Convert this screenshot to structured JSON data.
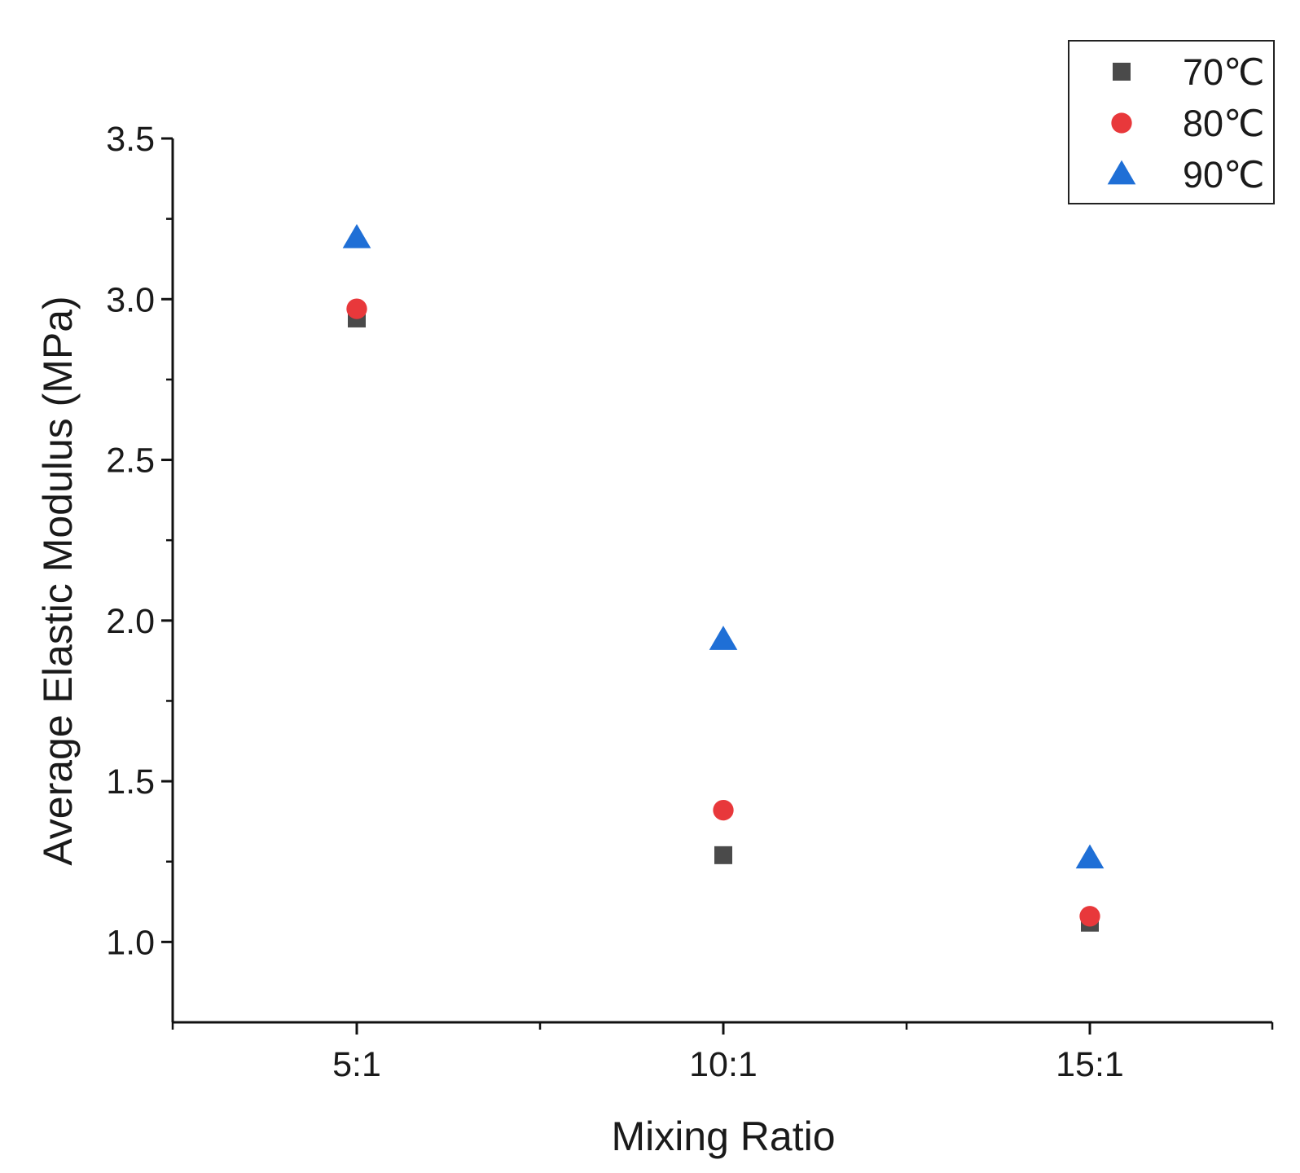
{
  "chart_data": {
    "type": "scatter",
    "title": "",
    "xlabel": "Mixing Ratio",
    "ylabel": "Average Elastic Modulus (MPa)",
    "categories": [
      "5:1",
      "10:1",
      "15:1"
    ],
    "ylim": [
      0.75,
      3.5
    ],
    "yticks": [
      "1.0",
      "1.5",
      "2.0",
      "2.5",
      "3.0",
      "3.5"
    ],
    "ytick_values": [
      1.0,
      1.5,
      2.0,
      2.5,
      3.0,
      3.5
    ],
    "ytick_minor_values": [
      1.25,
      1.75,
      2.25,
      2.75,
      3.25
    ],
    "grid": false,
    "legend_position": "top-right",
    "series": [
      {
        "name": "70℃",
        "marker": "square",
        "color": "#4a4a4a",
        "values": [
          2.94,
          1.27,
          1.06
        ]
      },
      {
        "name": "80℃",
        "marker": "circle",
        "color": "#e8383b",
        "values": [
          2.97,
          1.41,
          1.08
        ]
      },
      {
        "name": "90℃",
        "marker": "triangle",
        "color": "#1f6fd6",
        "values": [
          3.19,
          1.94,
          1.26
        ]
      }
    ]
  }
}
